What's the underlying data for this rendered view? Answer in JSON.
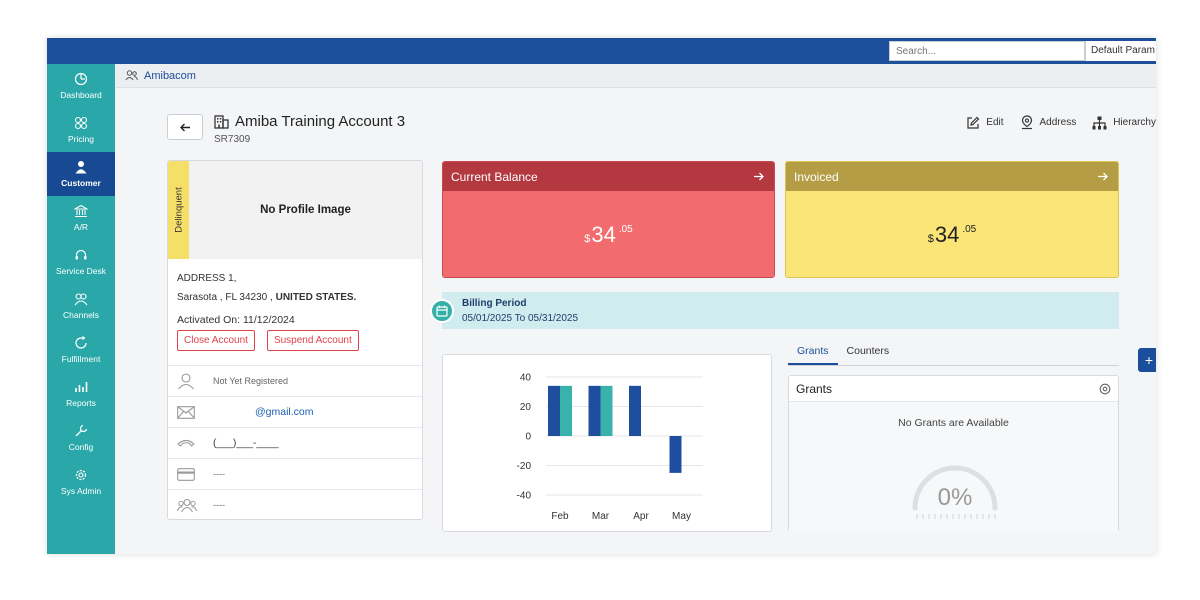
{
  "topbar": {
    "search_placeholder": "Search...",
    "param_label": "Default Param"
  },
  "sidebar": {
    "items": [
      {
        "label": "Dashboard",
        "icon": "dashboard-icon"
      },
      {
        "label": "Pricing",
        "icon": "pricing-icon"
      },
      {
        "label": "Customer",
        "icon": "customer-icon",
        "active": true
      },
      {
        "label": "A/R",
        "icon": "bank-icon"
      },
      {
        "label": "Service Desk",
        "icon": "headset-icon"
      },
      {
        "label": "Channels",
        "icon": "channels-icon"
      },
      {
        "label": "Fulfillment",
        "icon": "fulfillment-icon"
      },
      {
        "label": "Reports",
        "icon": "reports-icon"
      },
      {
        "label": "Config",
        "icon": "wrench-icon"
      },
      {
        "label": "Sys Admin",
        "icon": "gear-icon"
      }
    ]
  },
  "breadcrumb": {
    "label": "Amibacom"
  },
  "account": {
    "name": "Amiba Training Account 3",
    "id": "SR7309"
  },
  "actions": {
    "edit": "Edit",
    "address": "Address",
    "hierarchy": "Hierarchy"
  },
  "profile": {
    "status": "Delinquent",
    "no_image": "No Profile Image",
    "address_line1": "ADDRESS 1,",
    "address_line2": "Sarasota , FL 34230 ,",
    "country": "UNITED STATES.",
    "activated": "Activated On: 11/12/2024",
    "close_btn": "Close Account",
    "suspend_btn": "Suspend Account",
    "registration": "Not Yet Registered",
    "email": "@gmail.com",
    "phone": "(___)___-____",
    "card": "----",
    "group": "----"
  },
  "current_balance": {
    "title": "Current Balance",
    "currency": "$",
    "whole": "34",
    "cents": ".05",
    "color": "#f26b6e"
  },
  "invoiced": {
    "title": "Invoiced",
    "currency": "$",
    "whole": "34",
    "cents": ".05",
    "color": "#fae576"
  },
  "billing": {
    "label": "Billing Period",
    "range": "05/01/2025 To 05/31/2025"
  },
  "chart_data": {
    "type": "bar",
    "categories": [
      "Feb",
      "Mar",
      "Apr",
      "May"
    ],
    "series": [
      {
        "values": [
          34,
          34,
          34,
          -25
        ],
        "color": "#1f4e9e"
      },
      {
        "values": [
          34,
          34,
          0,
          0
        ],
        "color": "#38b2ab"
      }
    ],
    "ylim": [
      -40,
      40
    ],
    "yticks": [
      40,
      20,
      0,
      -20,
      -40
    ],
    "title": "",
    "xlabel": "",
    "ylabel": ""
  },
  "grants": {
    "tabs": [
      "Grants",
      "Counters"
    ],
    "title": "Grants",
    "empty": "No Grants are Available",
    "percent": "0%"
  }
}
